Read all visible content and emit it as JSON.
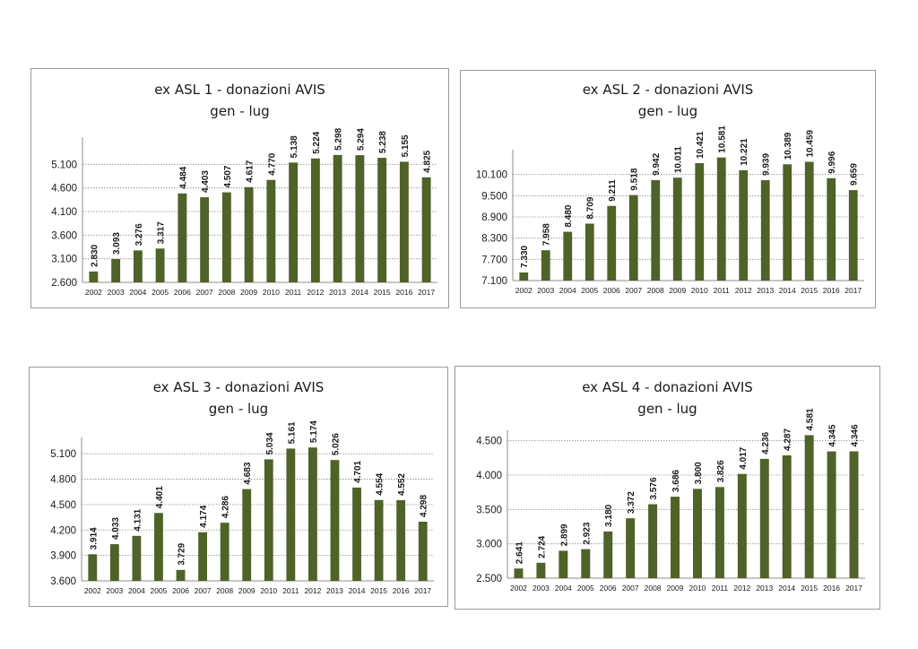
{
  "chart_data": [
    {
      "type": "bar",
      "title": "ex ASL 1 - donazioni AVIS",
      "subtitle": "gen - lug",
      "categories": [
        "2002",
        "2003",
        "2004",
        "2005",
        "2006",
        "2007",
        "2008",
        "2009",
        "2010",
        "2011",
        "2012",
        "2013",
        "2014",
        "2015",
        "2016",
        "2017"
      ],
      "values": [
        2830,
        3093,
        3276,
        3317,
        4484,
        4403,
        4507,
        4617,
        4770,
        5138,
        5224,
        5298,
        5294,
        5238,
        5155,
        4825
      ],
      "value_labels": [
        "2.830",
        "3.093",
        "3.276",
        "3.317",
        "4.484",
        "4.403",
        "4.507",
        "4.617",
        "4.770",
        "5.138",
        "5.224",
        "5.298",
        "5.294",
        "5.238",
        "5.155",
        "4.825"
      ],
      "yticks": [
        "2.600",
        "3.100",
        "3.600",
        "4.100",
        "4.600",
        "5.100"
      ],
      "ylim": [
        2600,
        5600
      ],
      "grid": true,
      "bar_color": "#4f6228"
    },
    {
      "type": "bar",
      "title": "ex ASL 2 - donazioni AVIS",
      "subtitle": "gen - lug",
      "categories": [
        "2002",
        "2003",
        "2004",
        "2005",
        "2006",
        "2007",
        "2008",
        "2009",
        "2010",
        "2011",
        "2012",
        "2013",
        "2014",
        "2015",
        "2016",
        "2017"
      ],
      "values": [
        7330,
        7958,
        8480,
        8709,
        9211,
        9518,
        9942,
        10011,
        10421,
        10581,
        10221,
        9939,
        10389,
        10459,
        9996,
        9659
      ],
      "value_labels": [
        "7.330",
        "7.958",
        "8.480",
        "8.709",
        "9.211",
        "9.518",
        "9.942",
        "10.011",
        "10.421",
        "10.581",
        "10.221",
        "9.939",
        "10.389",
        "10.459",
        "9.996",
        "9.659"
      ],
      "yticks": [
        "7.100",
        "7.700",
        "8.300",
        "8.900",
        "9.500",
        "10.100"
      ],
      "ylim": [
        7100,
        10700
      ],
      "grid": true,
      "bar_color": "#4f6228"
    },
    {
      "type": "bar",
      "title": "ex ASL 3 - donazioni AVIS",
      "subtitle": "gen - lug",
      "categories": [
        "2002",
        "2003",
        "2004",
        "2005",
        "2006",
        "2007",
        "2008",
        "2009",
        "2010",
        "2011",
        "2012",
        "2013",
        "2014",
        "2015",
        "2016",
        "2017"
      ],
      "values": [
        3914,
        4033,
        4131,
        4401,
        3729,
        4174,
        4286,
        4683,
        5034,
        5161,
        5174,
        5026,
        4701,
        4554,
        4552,
        4298
      ],
      "value_labels": [
        "3.914",
        "4.033",
        "4.131",
        "4.401",
        "3.729",
        "4.174",
        "4.286",
        "4.683",
        "5.034",
        "5.161",
        "5.174",
        "5.026",
        "4.701",
        "4.554",
        "4.552",
        "4.298"
      ],
      "yticks": [
        "3.600",
        "3.900",
        "4.200",
        "4.500",
        "4.800",
        "5.100"
      ],
      "ylim": [
        3600,
        5250
      ],
      "grid": true,
      "bar_color": "#4f6228"
    },
    {
      "type": "bar",
      "title": "ex ASL 4 - donazioni AVIS",
      "subtitle": "gen - lug",
      "categories": [
        "2002",
        "2003",
        "2004",
        "2005",
        "2006",
        "2007",
        "2008",
        "2009",
        "2010",
        "2011",
        "2012",
        "2013",
        "2014",
        "2015",
        "2016",
        "2017"
      ],
      "values": [
        2641,
        2724,
        2899,
        2923,
        3180,
        3372,
        3576,
        3686,
        3800,
        3826,
        4017,
        4236,
        4287,
        4581,
        4345,
        4346
      ],
      "value_labels": [
        "2.641",
        "2.724",
        "2.899",
        "2.923",
        "3.180",
        "3.372",
        "3.576",
        "3.686",
        "3.800",
        "3.826",
        "4.017",
        "4.236",
        "4.287",
        "4.581",
        "4.345",
        "4.346"
      ],
      "yticks": [
        "2.500",
        "3.000",
        "3.500",
        "4.000",
        "4.500"
      ],
      "ylim": [
        2500,
        4600
      ],
      "grid": true,
      "bar_color": "#4f6228"
    }
  ]
}
